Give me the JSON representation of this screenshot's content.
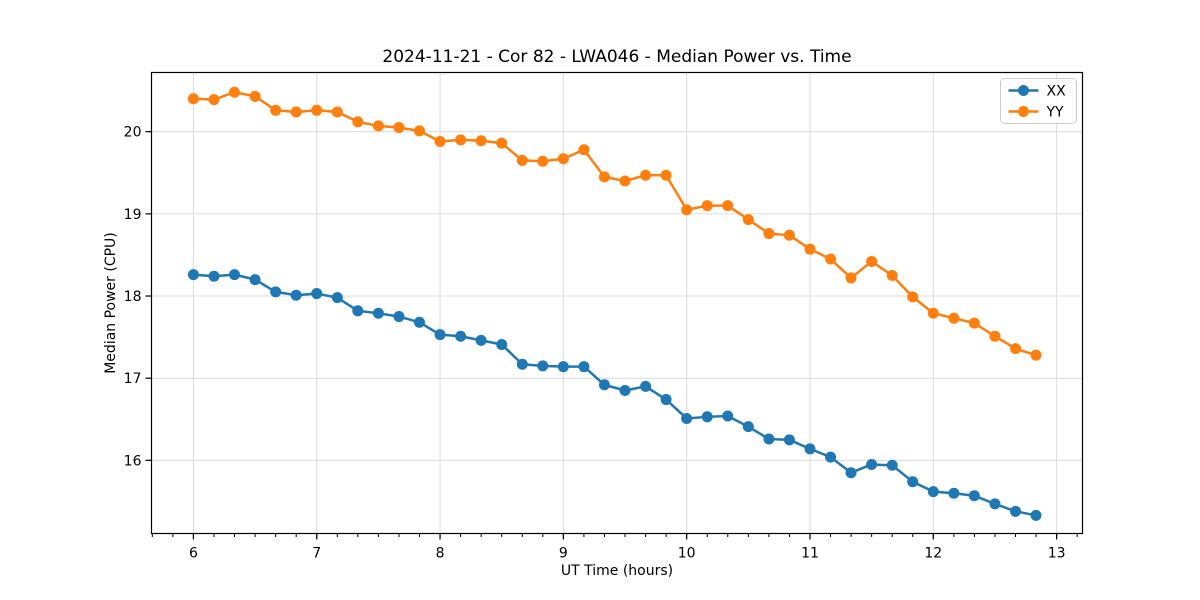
{
  "chart_data": {
    "type": "line",
    "title": "2024-11-21 - Cor 82 - LWA046 - Median Power vs. Time",
    "xlabel": "UT Time (hours)",
    "ylabel": "Median Power (CPU)",
    "xlim": [
      5.66,
      13.21
    ],
    "ylim": [
      15.11,
      20.72
    ],
    "x_ticks": [
      6,
      7,
      8,
      9,
      10,
      11,
      12,
      13
    ],
    "y_ticks": [
      16,
      17,
      18,
      19,
      20
    ],
    "x_minor_step": 0.166667,
    "grid": true,
    "legend_position": "upper right",
    "x": [
      6.0,
      6.167,
      6.333,
      6.5,
      6.667,
      6.833,
      7.0,
      7.167,
      7.333,
      7.5,
      7.667,
      7.833,
      8.0,
      8.167,
      8.333,
      8.5,
      8.667,
      8.833,
      9.0,
      9.167,
      9.333,
      9.5,
      9.667,
      9.833,
      10.0,
      10.167,
      10.333,
      10.5,
      10.667,
      10.833,
      11.0,
      11.167,
      11.333,
      11.5,
      11.667,
      11.833,
      12.0,
      12.167,
      12.333,
      12.5,
      12.667,
      12.833
    ],
    "series": [
      {
        "name": "XX",
        "color": "#1f77b4",
        "values": [
          18.26,
          18.24,
          18.26,
          18.2,
          18.05,
          18.01,
          18.03,
          17.98,
          17.82,
          17.79,
          17.75,
          17.68,
          17.53,
          17.51,
          17.46,
          17.41,
          17.17,
          17.15,
          17.14,
          17.14,
          16.92,
          16.85,
          16.9,
          16.74,
          16.51,
          16.53,
          16.54,
          16.41,
          16.26,
          16.25,
          16.14,
          16.04,
          15.85,
          15.95,
          15.94,
          15.74,
          15.62,
          15.6,
          15.57,
          15.47,
          15.38,
          15.33
        ]
      },
      {
        "name": "YY",
        "color": "#ff7f0e",
        "values": [
          20.4,
          20.39,
          20.48,
          20.43,
          20.26,
          20.24,
          20.26,
          20.24,
          20.12,
          20.07,
          20.05,
          20.01,
          19.88,
          19.9,
          19.89,
          19.86,
          19.65,
          19.64,
          19.67,
          19.78,
          19.45,
          19.4,
          19.47,
          19.47,
          19.05,
          19.1,
          19.1,
          18.93,
          18.76,
          18.74,
          18.57,
          18.45,
          18.22,
          18.42,
          18.25,
          17.99,
          17.79,
          17.73,
          17.67,
          17.51,
          17.36,
          17.28
        ]
      }
    ],
    "style": {
      "grid_color": "#dcdcdc",
      "spine_color": "#000000",
      "legend_border_color": "#cccccc",
      "background": "#ffffff",
      "marker": "o",
      "marker_radius": 5.5,
      "line_width": 2.5
    }
  }
}
